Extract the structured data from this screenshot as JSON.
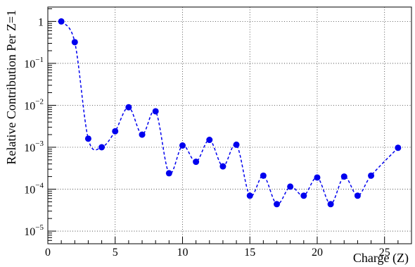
{
  "chart_data": {
    "type": "line",
    "title": "",
    "xlabel": "Charge (Z)",
    "ylabel": "Relative Contribution Per Z=1",
    "xlim": [
      0,
      27
    ],
    "ylim": [
      5e-06,
      2.2
    ],
    "yscale": "log",
    "grid": true,
    "x_ticks": [
      0,
      5,
      10,
      15,
      20,
      25
    ],
    "x_tick_labels": [
      "0",
      "5",
      "10",
      "15",
      "20",
      "25"
    ],
    "y_ticks": [
      1e-05,
      0.0001,
      0.001,
      0.01,
      0.1,
      1
    ],
    "y_tick_labels": [
      {
        "base": "10",
        "exp": "−5"
      },
      {
        "base": "10",
        "exp": "−4"
      },
      {
        "base": "10",
        "exp": "−3"
      },
      {
        "base": "10",
        "exp": "−2"
      },
      {
        "base": "10",
        "exp": "−1"
      },
      {
        "base": "1",
        "exp": ""
      }
    ],
    "series": [
      {
        "color": "#0000ee",
        "line_style": "dashed",
        "marker": "circle",
        "x": [
          1,
          2,
          3,
          4,
          5,
          6,
          7,
          8,
          9,
          10,
          11,
          12,
          13,
          14,
          15,
          16,
          17,
          18,
          19,
          20,
          21,
          22,
          23,
          24,
          26
        ],
        "y": [
          1.0,
          0.32,
          0.0016,
          0.001,
          0.0024,
          0.009,
          0.002,
          0.0072,
          0.00024,
          0.0011,
          0.00045,
          0.0015,
          0.00035,
          0.00115,
          7e-05,
          0.00021,
          4.4e-05,
          0.000115,
          7e-05,
          0.00019,
          4.4e-05,
          0.0002,
          7e-05,
          0.00021,
          0.00097
        ]
      }
    ]
  }
}
